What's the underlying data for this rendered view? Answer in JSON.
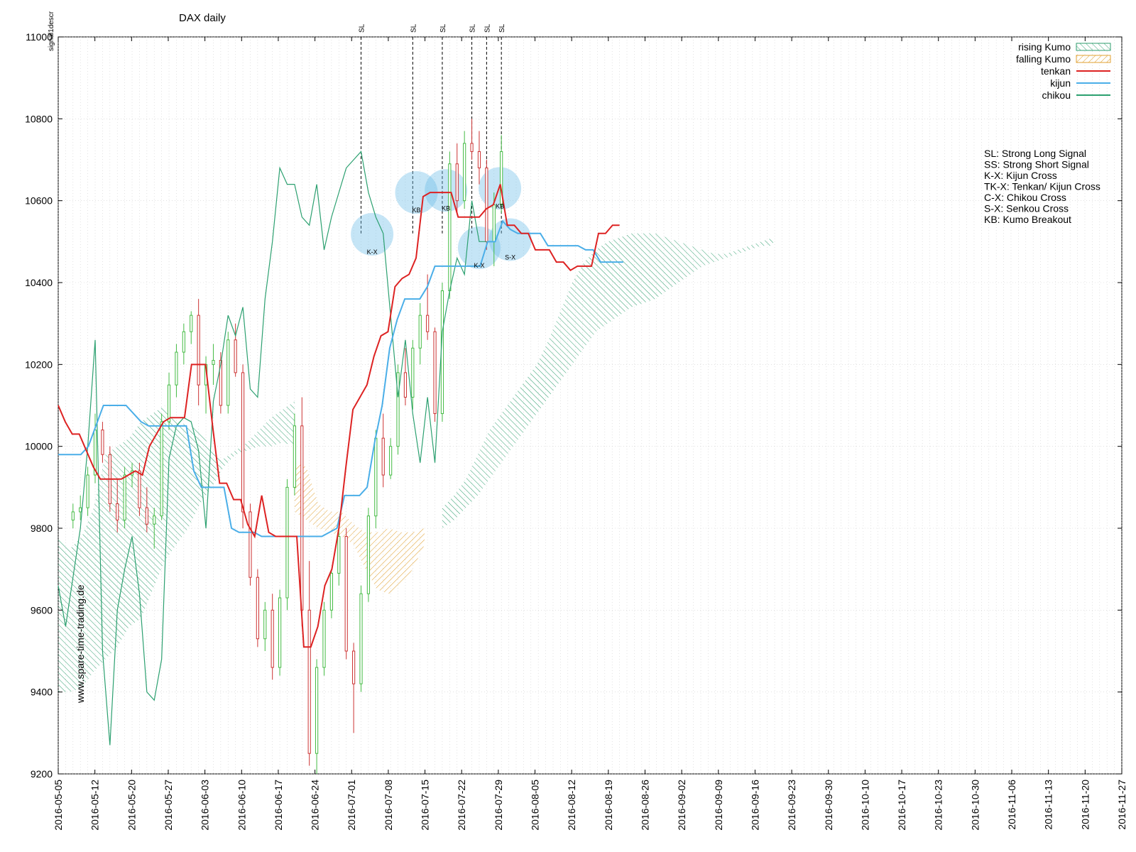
{
  "chart_data": {
    "type": "candlestick",
    "title": "DAX daily",
    "ylabel": "signal1descr",
    "watermark": "www.spare-time-trading.de",
    "ylim": [
      9200,
      11000
    ],
    "yticks": [
      9200,
      9400,
      9600,
      9800,
      10000,
      10200,
      10400,
      10600,
      10800,
      11000
    ],
    "xlim": [
      "2016-05-05",
      "2016-11-28"
    ],
    "xticks": [
      "2016-05-05",
      "2016-05-12",
      "2016-05-20",
      "2016-05-27",
      "2016-06-03",
      "2016-06-10",
      "2016-06-17",
      "2016-06-24",
      "2016-07-01",
      "2016-07-08",
      "2016-07-15",
      "2016-07-22",
      "2016-07-29",
      "2016-08-05",
      "2016-08-12",
      "2016-08-19",
      "2016-08-26",
      "2016-09-02",
      "2016-09-09",
      "2016-09-16",
      "2016-09-23",
      "2016-09-30",
      "2016-10-10",
      "2016-10-17",
      "2016-10-23",
      "2016-10-30",
      "2016-11-06",
      "2016-11-13",
      "2016-11-20",
      "2016-11-27"
    ],
    "legend": {
      "placement": "top-right",
      "entries": [
        {
          "label": "rising Kumo",
          "color": "#2e9e6e",
          "style": "hatch-rise"
        },
        {
          "label": "falling Kumo",
          "color": "#e0a030",
          "style": "hatch-fall"
        },
        {
          "label": "tenkan",
          "color": "#dd2222",
          "style": "line"
        },
        {
          "label": "kijun",
          "color": "#4aaee8",
          "style": "line"
        },
        {
          "label": "chikou",
          "color": "#2ca070",
          "style": "line"
        }
      ]
    },
    "notes": [
      "SL: Strong Long Signal",
      "SS: Strong Short Signal",
      "K-X: Kijun Cross",
      "TK-X: Tenkan/ Kijun Cross",
      "C-X: Chikou Cross",
      "S-X: Senkou Cross",
      "KB: Kumo Breakout"
    ],
    "signals": [
      {
        "label": "SL",
        "x": 39
      },
      {
        "label": "SL",
        "x": 46
      },
      {
        "label": "SL",
        "x": 50
      },
      {
        "label": "SL",
        "x": 54
      },
      {
        "label": "SL",
        "x": 56
      },
      {
        "label": "SL",
        "x": 58
      }
    ],
    "annotations": [
      {
        "label": "K-X",
        "x": 40.5,
        "y": 10518
      },
      {
        "label": "KB",
        "x": 46.5,
        "y": 10620
      },
      {
        "label": "KB",
        "x": 50.5,
        "y": 10625
      },
      {
        "label": "K-X",
        "x": 55.0,
        "y": 10485
      },
      {
        "label": "KB",
        "x": 57.8,
        "y": 10630
      },
      {
        "label": "S-X",
        "x": 59.2,
        "y": 10505
      }
    ],
    "bars_axis": "x values are trading-day index starting 2016-05-05 (0) through 2016-10-21 (58), with Kumo projected to index 84",
    "candles": [
      [
        9820,
        9860,
        9800,
        9840
      ],
      [
        9840,
        9880,
        9820,
        9850
      ],
      [
        9850,
        9950,
        9830,
        9930
      ],
      [
        9930,
        10080,
        9910,
        10040
      ],
      [
        10040,
        10060,
        9960,
        9980
      ],
      [
        9980,
        10000,
        9840,
        9860
      ],
      [
        9860,
        9920,
        9790,
        9820
      ],
      [
        9820,
        9950,
        9800,
        9930
      ],
      [
        9930,
        9960,
        9900,
        9940
      ],
      [
        9940,
        9960,
        9830,
        9850
      ],
      [
        9850,
        9900,
        9790,
        9810
      ],
      [
        9810,
        9850,
        9750,
        9830
      ],
      [
        9830,
        10080,
        9820,
        10060
      ],
      [
        10060,
        10180,
        10040,
        10150
      ],
      [
        10150,
        10250,
        10120,
        10230
      ],
      [
        10230,
        10300,
        10200,
        10280
      ],
      [
        10280,
        10330,
        10250,
        10320
      ],
      [
        10320,
        10360,
        10100,
        10150
      ],
      [
        10150,
        10220,
        10080,
        10200
      ],
      [
        10200,
        10250,
        10150,
        10210
      ],
      [
        10210,
        10230,
        10080,
        10100
      ],
      [
        10100,
        10280,
        10080,
        10260
      ],
      [
        10260,
        10300,
        10170,
        10180
      ],
      [
        10180,
        10200,
        9800,
        9840
      ],
      [
        9840,
        9860,
        9660,
        9680
      ],
      [
        9680,
        9700,
        9510,
        9530
      ],
      [
        9530,
        9620,
        9500,
        9600
      ],
      [
        9600,
        9640,
        9430,
        9460
      ],
      [
        9460,
        9650,
        9440,
        9630
      ],
      [
        9630,
        9920,
        9600,
        9900
      ],
      [
        9900,
        10080,
        9880,
        10050
      ],
      [
        10050,
        10120,
        9560,
        9600
      ],
      [
        9600,
        9720,
        9220,
        9250
      ],
      [
        9250,
        9480,
        9200,
        9460
      ],
      [
        9460,
        9620,
        9440,
        9600
      ],
      [
        9600,
        9700,
        9580,
        9690
      ],
      [
        9690,
        9800,
        9660,
        9780
      ],
      [
        9780,
        9800,
        9480,
        9500
      ],
      [
        9500,
        9520,
        9300,
        9420
      ],
      [
        9420,
        9660,
        9400,
        9640
      ],
      [
        9640,
        9850,
        9620,
        9830
      ],
      [
        9830,
        10040,
        9800,
        10020
      ],
      [
        10020,
        10080,
        9900,
        9930
      ],
      [
        9930,
        10020,
        9920,
        10000
      ],
      [
        10000,
        10200,
        9980,
        10180
      ],
      [
        10180,
        10240,
        10100,
        10120
      ],
      [
        10120,
        10260,
        10090,
        10240
      ],
      [
        10240,
        10350,
        10200,
        10320
      ],
      [
        10320,
        10420,
        10260,
        10280
      ],
      [
        10280,
        10290,
        10060,
        10080
      ],
      [
        10080,
        10400,
        10060,
        10380
      ],
      [
        10380,
        10720,
        10360,
        10690
      ],
      [
        10690,
        10740,
        10570,
        10600
      ],
      [
        10600,
        10770,
        10580,
        10740
      ],
      [
        10740,
        10800,
        10700,
        10720
      ],
      [
        10720,
        10770,
        10640,
        10680
      ],
      [
        10680,
        10700,
        10480,
        10500
      ],
      [
        10500,
        10620,
        10440,
        10590
      ],
      [
        10590,
        10760,
        10570,
        10720
      ]
    ],
    "tenkan": [
      10100,
      10060,
      10030,
      10030,
      9990,
      9950,
      9920,
      9920,
      9920,
      9920,
      9930,
      9940,
      9930,
      10000,
      10030,
      10060,
      10070,
      10070,
      10070,
      10200,
      10200,
      10200,
      10050,
      9910,
      9910,
      9870,
      9870,
      9810,
      9780,
      9880,
      9790,
      9780,
      9780,
      9780,
      9780,
      9510,
      9510,
      9560,
      9660,
      9700,
      9800,
      9950,
      10090,
      10120,
      10150,
      10220,
      10270,
      10280,
      10390,
      10410,
      10420,
      10460,
      10610,
      10620,
      10620,
      10620,
      10620,
      10560,
      10560,
      10560,
      10560,
      10580,
      10590,
      10640,
      10540,
      10540,
      10520,
      10520,
      10480,
      10480,
      10480,
      10450,
      10450,
      10430,
      10440,
      10440,
      10440,
      10520,
      10520,
      10540,
      10540
    ],
    "kijun": [
      9980,
      9980,
      9980,
      9980,
      10000,
      10050,
      10100,
      10100,
      10100,
      10100,
      10080,
      10060,
      10050,
      10050,
      10050,
      10050,
      10050,
      10050,
      9940,
      9900,
      9900,
      9900,
      9900,
      9800,
      9790,
      9790,
      9790,
      9780,
      9780,
      9780,
      9780,
      9780,
      9780,
      9780,
      9780,
      9780,
      9790,
      9800,
      9880,
      9880,
      9880,
      9900,
      10010,
      10100,
      10240,
      10310,
      10360,
      10360,
      10360,
      10390,
      10440,
      10440,
      10440,
      10440,
      10440,
      10440,
      10440,
      10500,
      10500,
      10550,
      10530,
      10520,
      10520,
      10520,
      10520,
      10490,
      10490,
      10490,
      10490,
      10490,
      10480,
      10480,
      10450,
      10450,
      10450,
      10450
    ],
    "chikou": [
      9660,
      9560,
      9680,
      9800,
      10000,
      10260,
      9500,
      9270,
      9600,
      9700,
      9780,
      9640,
      9400,
      9380,
      9480,
      9970,
      10050,
      10070,
      10060,
      9990,
      9800,
      10110,
      10200,
      10320,
      10270,
      10340,
      10140,
      10120,
      10360,
      10500,
      10680,
      10640,
      10640,
      10560,
      10540,
      10640,
      10480,
      10560,
      10620,
      10680,
      10700,
      10720,
      10620,
      10560,
      10520,
      10320,
      10120,
      10260,
      10080,
      9960,
      10120,
      9960,
      10280,
      10380,
      10460,
      10420,
      10600,
      10500,
      10500
    ],
    "kumo_rising": [
      [
        9400,
        9780
      ],
      [
        9400,
        9750
      ],
      [
        9410,
        9780
      ],
      [
        9450,
        9850
      ],
      [
        9480,
        9980
      ],
      [
        9510,
        10000
      ],
      [
        9560,
        10020
      ],
      [
        9580,
        10060
      ],
      [
        9650,
        10080
      ],
      [
        9720,
        10100
      ],
      [
        9760,
        10060
      ],
      [
        9800,
        10050
      ],
      [
        9860,
        10040
      ],
      [
        9900,
        9990
      ],
      [
        9950,
        9970
      ],
      [
        9980,
        9990
      ],
      [
        9990,
        10010
      ],
      [
        10000,
        10040
      ],
      [
        10000,
        10070
      ],
      [
        10010,
        10090
      ],
      [
        10000,
        10110
      ]
    ],
    "kumo_falling": [
      [
        9840,
        9960
      ],
      [
        9820,
        9950
      ],
      [
        9800,
        9860
      ],
      [
        9790,
        9840
      ],
      [
        9780,
        9840
      ],
      [
        9760,
        9810
      ],
      [
        9700,
        9790
      ],
      [
        9650,
        9790
      ],
      [
        9640,
        9800
      ],
      [
        9660,
        9790
      ],
      [
        9700,
        9790
      ],
      [
        9760,
        9800
      ]
    ],
    "kumo_rising_late": [
      [
        9800,
        9850
      ],
      [
        9820,
        9880
      ],
      [
        9850,
        9920
      ],
      [
        9880,
        9980
      ],
      [
        9920,
        10040
      ],
      [
        9960,
        10080
      ],
      [
        10000,
        10120
      ],
      [
        10040,
        10160
      ],
      [
        10080,
        10200
      ],
      [
        10120,
        10260
      ],
      [
        10160,
        10330
      ],
      [
        10200,
        10400
      ],
      [
        10240,
        10450
      ],
      [
        10280,
        10480
      ],
      [
        10300,
        10500
      ],
      [
        10320,
        10510
      ],
      [
        10340,
        10520
      ],
      [
        10350,
        10520
      ],
      [
        10360,
        10520
      ],
      [
        10380,
        10510
      ],
      [
        10400,
        10500
      ],
      [
        10420,
        10490
      ],
      [
        10440,
        10480
      ],
      [
        10450,
        10470
      ],
      [
        10460,
        10470
      ],
      [
        10470,
        10480
      ],
      [
        10480,
        10490
      ],
      [
        10490,
        10500
      ],
      [
        10490,
        10510
      ]
    ]
  }
}
